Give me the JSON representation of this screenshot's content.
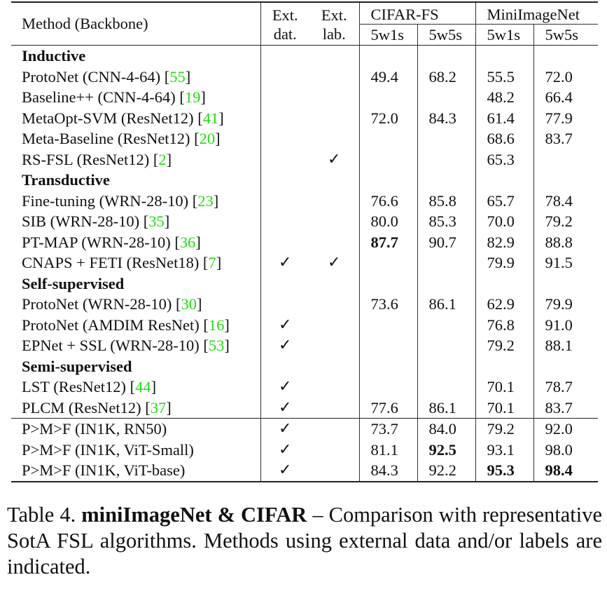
{
  "table": {
    "header": {
      "method": "Method (Backbone)",
      "ext_dat": [
        "Ext.",
        "dat."
      ],
      "ext_lab": [
        "Ext.",
        "lab."
      ],
      "groups": [
        "CIFAR-FS",
        "MiniImageNet"
      ],
      "subcols": [
        "5w1s",
        "5w5s",
        "5w1s",
        "5w5s"
      ]
    },
    "check_glyph": "✓",
    "sections": [
      {
        "title": "Inductive",
        "rows": [
          {
            "method": "ProtoNet (CNN-4-64) [",
            "cite": "55",
            "close": "]",
            "dat": "",
            "lab": "",
            "c1": "49.4",
            "c5": "68.2",
            "m1": "55.5",
            "m5": "72.0"
          },
          {
            "method": "Baseline++ (CNN-4-64) [",
            "cite": "19",
            "close": "]",
            "dat": "",
            "lab": "",
            "c1": "",
            "c5": "",
            "m1": "48.2",
            "m5": "66.4"
          },
          {
            "method": "MetaOpt-SVM (ResNet12) [",
            "cite": "41",
            "close": "]",
            "dat": "",
            "lab": "",
            "c1": "72.0",
            "c5": "84.3",
            "m1": "61.4",
            "m5": "77.9"
          },
          {
            "method": "Meta-Baseline (ResNet12) [",
            "cite": "20",
            "close": "]",
            "dat": "",
            "lab": "",
            "c1": "",
            "c5": "",
            "m1": "68.6",
            "m5": "83.7"
          },
          {
            "method": "RS-FSL (ResNet12) [",
            "cite": "2",
            "close": "]",
            "dat": "",
            "lab": "✓",
            "c1": "",
            "c5": "",
            "m1": "65.3",
            "m5": ""
          }
        ]
      },
      {
        "title": "Transductive",
        "rows": [
          {
            "method": "Fine-tuning (WRN-28-10) [",
            "cite": "23",
            "close": "]",
            "dat": "",
            "lab": "",
            "c1": "76.6",
            "c5": "85.8",
            "m1": "65.7",
            "m5": "78.4"
          },
          {
            "method": "SIB (WRN-28-10) [",
            "cite": "35",
            "close": "]",
            "dat": "",
            "lab": "",
            "c1": "80.0",
            "c5": "85.3",
            "m1": "70.0",
            "m5": "79.2"
          },
          {
            "method": "PT-MAP (WRN-28-10) [",
            "cite": "36",
            "close": "]",
            "dat": "",
            "lab": "",
            "c1": "87.7",
            "c5": "90.7",
            "m1": "82.9",
            "m5": "88.8"
          },
          {
            "method": "CNAPS + FETI (ResNet18) [",
            "cite": "7",
            "close": "]",
            "dat": "✓",
            "lab": "✓",
            "c1": "",
            "c5": "",
            "m1": "79.9",
            "m5": "91.5"
          }
        ]
      },
      {
        "title": "Self-supervised",
        "rows": [
          {
            "method": "ProtoNet (WRN-28-10) [",
            "cite": "30",
            "close": "]",
            "dat": "",
            "lab": "",
            "c1": "73.6",
            "c5": "86.1",
            "m1": "62.9",
            "m5": "79.9"
          },
          {
            "method": "ProtoNet (AMDIM ResNet) [",
            "cite": "16",
            "close": "]",
            "dat": "✓",
            "lab": "",
            "c1": "",
            "c5": "",
            "m1": "76.8",
            "m5": "91.0"
          },
          {
            "method": "EPNet + SSL (WRN-28-10) [",
            "cite": "53",
            "close": "]",
            "dat": "✓",
            "lab": "",
            "c1": "",
            "c5": "",
            "m1": "79.2",
            "m5": "88.1"
          }
        ]
      },
      {
        "title": "Semi-supervised",
        "rows": [
          {
            "method": "LST (ResNet12) [",
            "cite": "44",
            "close": "]",
            "dat": "✓",
            "lab": "",
            "c1": "",
            "c5": "",
            "m1": "70.1",
            "m5": "78.7"
          },
          {
            "method": "PLCM (ResNet12) [",
            "cite": "37",
            "close": "]",
            "dat": "✓",
            "lab": "",
            "c1": "77.6",
            "c5": "86.1",
            "m1": "70.1",
            "m5": "83.7"
          }
        ]
      }
    ],
    "ours": [
      {
        "method": "P>M>F (IN1K, RN50)",
        "dat": "✓",
        "lab": "",
        "c1": "73.7",
        "c5": "84.0",
        "m1": "79.2",
        "m5": "92.0"
      },
      {
        "method": "P>M>F (IN1K, ViT-Small)",
        "dat": "✓",
        "lab": "",
        "c1": "81.1",
        "c5": "92.5",
        "m1": "93.1",
        "m5": "98.0"
      },
      {
        "method": "P>M>F (IN1K, ViT-base)",
        "dat": "✓",
        "lab": "",
        "c1": "84.3",
        "c5": "92.2",
        "m1": "95.3",
        "m5": "98.4"
      }
    ],
    "bold_cells": [
      "PT-MAP c1 87.7",
      "ViT-Small c5 92.5",
      "ViT-base m1 95.3",
      "ViT-base m5 98.4"
    ]
  },
  "caption": {
    "label": "Table 4.",
    "title": "miniImageNet & CIFAR",
    "text": " – Comparison with representative SotA FSL algorithms. Methods using external data and/or labels are indicated."
  },
  "colors": {
    "citation": "#22dd11",
    "text": "#111111",
    "rules": "#222222"
  }
}
